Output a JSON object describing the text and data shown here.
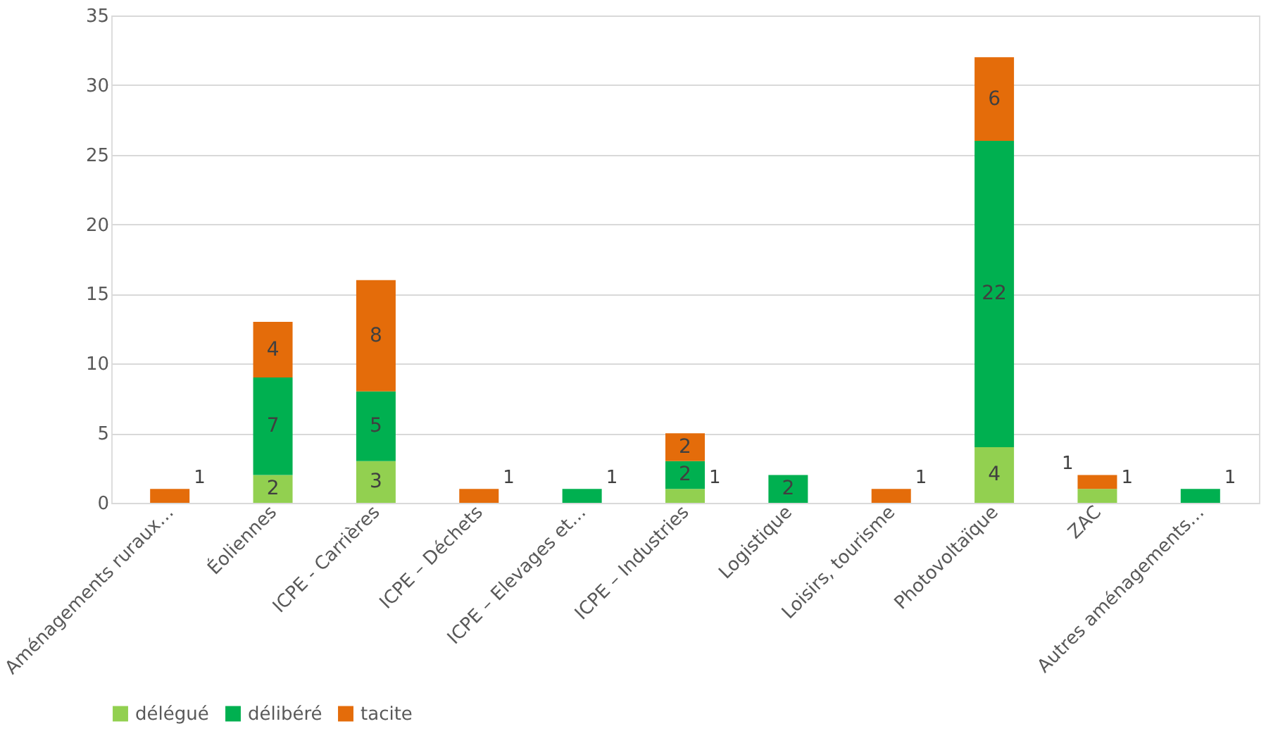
{
  "chart_data": {
    "type": "bar",
    "stacked": true,
    "categories": [
      "Aménagements ruraux…",
      "Éoliennes",
      "ICPE - Carrières",
      "ICPE – Déchets",
      "ICPE – Elevages et…",
      "ICPE – Industries",
      "Logistique",
      "Loisirs, tourisme",
      "Photovoltaïque",
      "ZAC",
      "Autres aménagements…"
    ],
    "series": [
      {
        "name": "délégué",
        "color": "#92d050",
        "values": [
          0,
          2,
          3,
          0,
          0,
          1,
          0,
          0,
          4,
          1,
          0
        ],
        "value_labels": [
          null,
          "2",
          "3",
          null,
          null,
          "1",
          null,
          null,
          "4",
          "1",
          null
        ]
      },
      {
        "name": "délibéré",
        "color": "#00b050",
        "values": [
          0,
          7,
          5,
          0,
          1,
          2,
          2,
          0,
          22,
          0,
          1
        ],
        "value_labels": [
          null,
          "7",
          "5",
          null,
          "1",
          "2",
          "2",
          null,
          "22",
          null,
          "1"
        ]
      },
      {
        "name": "tacite",
        "color": "#e46c0a",
        "values": [
          1,
          4,
          8,
          1,
          0,
          2,
          0,
          1,
          6,
          1,
          0
        ],
        "value_labels": [
          "1",
          "4",
          "8",
          "1",
          null,
          "2",
          null,
          "1",
          "6",
          "1",
          null
        ]
      }
    ],
    "ylim": [
      0,
      35
    ],
    "yticks": [
      0,
      5,
      10,
      15,
      20,
      25,
      30,
      35
    ],
    "grid": "y",
    "legend": "bottom"
  }
}
